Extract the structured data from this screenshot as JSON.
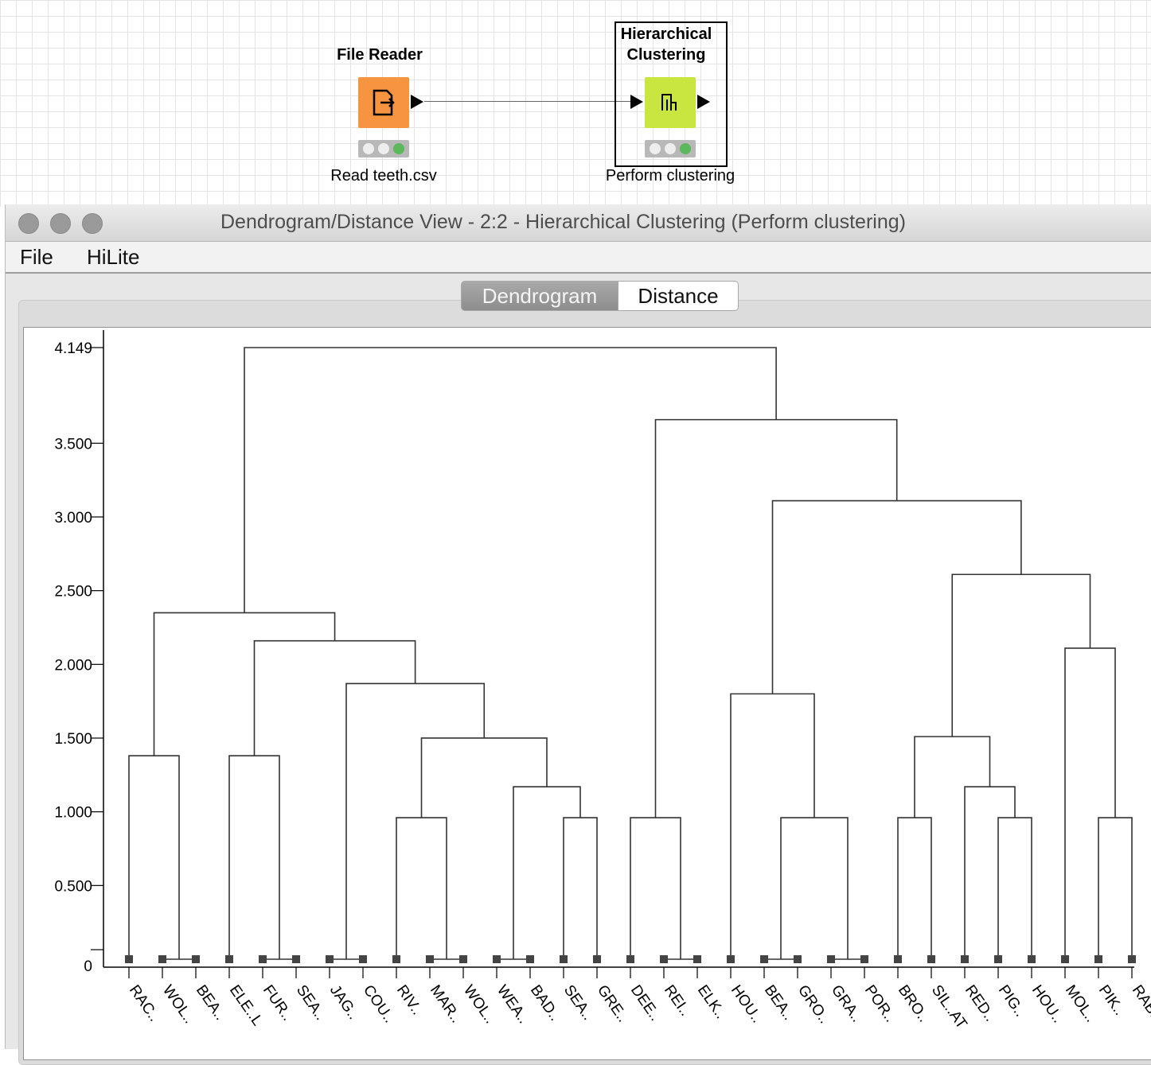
{
  "workflow": {
    "file_reader": {
      "title": "File Reader",
      "label": "Read teeth.csv",
      "color": "#f7943f",
      "icon": "file-reader-icon"
    },
    "clustering": {
      "title_line1": "Hierarchical",
      "title_line2": "Clustering",
      "label": "Perform clustering",
      "color": "#c9e540",
      "icon": "dendrogram-icon"
    }
  },
  "window": {
    "title": "Dendrogram/Distance View - 2:2 - Hierarchical Clustering (Perform clustering)",
    "menu": [
      "File",
      "HiLite"
    ],
    "tabs": [
      "Dendrogram",
      "Distance"
    ],
    "active_tab": "Dendrogram"
  },
  "chart_data": {
    "type": "dendrogram",
    "ylim": [
      0,
      4.149
    ],
    "y_ticks": [
      "0",
      "0.500",
      "1.000",
      "1.500",
      "2.000",
      "2.500",
      "3.000",
      "3.500",
      "4.149"
    ],
    "y_tick_values": [
      0,
      0.5,
      1.0,
      1.5,
      2.0,
      2.5,
      3.0,
      3.5,
      4.149
    ],
    "leaves": [
      "RAC..",
      "WOL..",
      "BEA..",
      "ELE..L",
      "FUR..",
      "SEA..",
      "JAG..",
      "COU..",
      "RIV..",
      "MAR..",
      "WOL..",
      "WEA..",
      "BAD..",
      "SEA..",
      "GRE..",
      "DEE..",
      "REI..",
      "ELK..",
      "HOU..",
      "BEA..",
      "GRO..",
      "GRA..",
      "POR..",
      "BRO..",
      "SIL..AT",
      "RED..",
      "PIG..",
      "HOU..",
      "MOL..",
      "PIK..",
      "RAB.."
    ],
    "merges": [
      {
        "left": 1,
        "right": 2,
        "height": 0
      },
      {
        "left": 0,
        "right": "n0",
        "height": 1.38
      },
      {
        "left": 4,
        "right": 5,
        "height": 0
      },
      {
        "left": 3,
        "right": "n2",
        "height": 1.38
      },
      {
        "left": 6,
        "right": 7,
        "height": 0
      },
      {
        "left": 9,
        "right": 10,
        "height": 0
      },
      {
        "left": 8,
        "right": "n5",
        "height": 0.96
      },
      {
        "left": 11,
        "right": 12,
        "height": 0
      },
      {
        "left": 13,
        "right": 14,
        "height": 0.96
      },
      {
        "left": "n7",
        "right": "n8",
        "height": 1.17
      },
      {
        "left": "n6",
        "right": "n9",
        "height": 1.5
      },
      {
        "left": "n4",
        "right": "n10",
        "height": 1.87
      },
      {
        "left": "n3",
        "right": "n11",
        "height": 2.16
      },
      {
        "left": "n1",
        "right": "n12",
        "height": 2.35
      },
      {
        "left": 16,
        "right": 17,
        "height": 0
      },
      {
        "left": 15,
        "right": "n14",
        "height": 0.96
      },
      {
        "left": 19,
        "right": 20,
        "height": 0
      },
      {
        "left": 21,
        "right": 22,
        "height": 0
      },
      {
        "left": "n16",
        "right": "n17",
        "height": 0.96
      },
      {
        "left": 18,
        "right": "n18",
        "height": 1.8
      },
      {
        "left": 23,
        "right": 24,
        "height": 0.96
      },
      {
        "left": 26,
        "right": 27,
        "height": 0.96
      },
      {
        "left": 25,
        "right": "n21",
        "height": 1.17
      },
      {
        "left": "n20",
        "right": "n22",
        "height": 1.51
      },
      {
        "left": 29,
        "right": 30,
        "height": 0.96
      },
      {
        "left": 28,
        "right": "n24",
        "height": 2.11
      },
      {
        "left": "n23",
        "right": "n25",
        "height": 2.61
      },
      {
        "left": "n19",
        "right": "n26",
        "height": 3.11
      },
      {
        "left": "n15",
        "right": "n27",
        "height": 3.66
      },
      {
        "left": "n13",
        "right": "n28",
        "height": 4.149
      }
    ]
  }
}
